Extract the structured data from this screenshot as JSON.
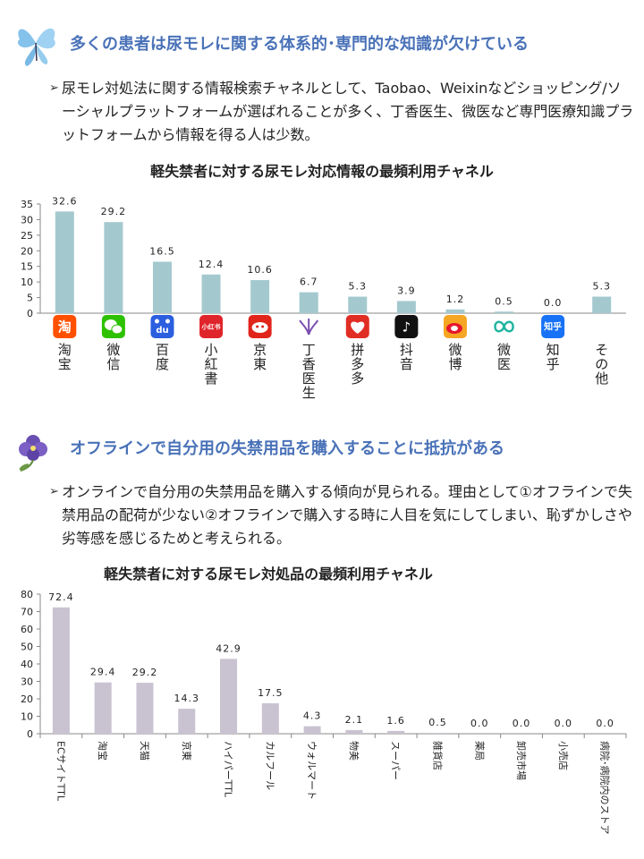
{
  "section1": {
    "heading": "多くの患者は尿モレに関する体系的･専門的な知識が欠けている",
    "bullet_marker": "➢",
    "bullet": "尿モレ対処法に関する情報検索チャネルとして、Taobao、Weixinなどショッピング/ソーシャルプラットフォームが選ばれることが多く、丁香医生、微医など専門医療知識プラットフォームから情報を得る人は少数。"
  },
  "section2": {
    "heading": "オフラインで自分用の失禁用品を購入することに抵抗がある",
    "bullet_marker": "➢",
    "bullet": "オンラインで自分用の失禁用品を購入する傾向が見られる。理由として①オフラインで失禁用品の配荷が少ない②オフラインで購入する時に人目を気にしてしまい、恥ずかしさや劣等感を感じるためと考えられる。"
  },
  "chart_data": [
    {
      "type": "bar",
      "title": "軽失禁者に対する尿モレ対応情報の最頻利用チャネル",
      "categories": [
        "淘宝",
        "微信",
        "百度",
        "小紅書",
        "京東",
        "丁香医生",
        "拼多多",
        "抖音",
        "微博",
        "微医",
        "知乎",
        "その他"
      ],
      "values": [
        32.6,
        29.2,
        16.5,
        12.4,
        10.6,
        6.7,
        5.3,
        3.9,
        1.2,
        0.5,
        0.0,
        5.3
      ],
      "value_labels": [
        "32.6",
        "29.2",
        "16.5",
        "12.4",
        "10.6",
        "6.7",
        "5.3",
        "3.9",
        "1.2",
        "0.5",
        "0.0",
        "5.3"
      ],
      "ylim": [
        0,
        35
      ],
      "yticks": [
        "0",
        "5",
        "10",
        "15",
        "20",
        "25",
        "30",
        "35"
      ],
      "bar_color": "#a3c9ce",
      "icons": [
        {
          "name": "taobao-icon",
          "glyph": "淘",
          "color": "#ff5000"
        },
        {
          "name": "wechat-icon",
          "glyph": "",
          "color": "#2dc100"
        },
        {
          "name": "baidu-icon",
          "glyph": "du",
          "color": "#2b5fe0"
        },
        {
          "name": "xiaohongshu-icon",
          "glyph": "小红书",
          "color": "#e0242b"
        },
        {
          "name": "jd-icon",
          "glyph": "",
          "color": "#e1251b"
        },
        {
          "name": "dingxiang-icon",
          "glyph": "",
          "color": "#7a4fb0"
        },
        {
          "name": "pinduoduo-icon",
          "glyph": "",
          "color": "#e02e24"
        },
        {
          "name": "douyin-icon",
          "glyph": "♪",
          "color": "#111111"
        },
        {
          "name": "weibo-icon",
          "glyph": "",
          "color": "#f5a623"
        },
        {
          "name": "weiyi-icon",
          "glyph": "",
          "color": "#21b5a0"
        },
        {
          "name": "zhihu-icon",
          "glyph": "知乎",
          "color": "#1772f6"
        },
        {
          "name": "none",
          "glyph": "",
          "color": ""
        }
      ]
    },
    {
      "type": "bar",
      "title": "軽失禁者に対する尿モレ対処品の最頻利用チャネル",
      "categories": [
        "ECサイトTTL",
        "淘宝",
        "天猫",
        "京東",
        "ハイパーTTL",
        "カルフール",
        "ウォルマート",
        "物美",
        "スーパー",
        "雑貨店",
        "薬局",
        "卸売市場",
        "小売店",
        "病院･病院内のストア"
      ],
      "values": [
        72.4,
        29.4,
        29.2,
        14.3,
        42.9,
        17.5,
        4.3,
        2.1,
        1.6,
        0.5,
        0.0,
        0.0,
        0.0,
        0.0
      ],
      "value_labels": [
        "72.4",
        "29.4",
        "29.2",
        "14.3",
        "42.9",
        "17.5",
        "4.3",
        "2.1",
        "1.6",
        "0.5",
        "0.0",
        "0.0",
        "0.0",
        "0.0"
      ],
      "ylim": [
        0,
        80
      ],
      "yticks": [
        "0",
        "10",
        "20",
        "30",
        "40",
        "50",
        "60",
        "70",
        "80"
      ],
      "bar_color": "#c9c2d1"
    }
  ]
}
